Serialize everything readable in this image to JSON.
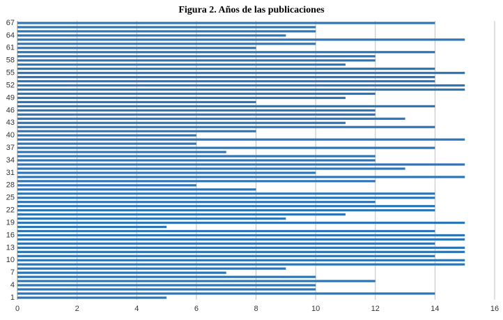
{
  "chart_data": {
    "type": "bar",
    "orientation": "horizontal",
    "title": "Figura 2. Años de las publicaciones",
    "categories": [
      "1",
      null,
      null,
      "4",
      null,
      null,
      "7",
      null,
      null,
      "10",
      null,
      null,
      "13",
      null,
      null,
      "16",
      null,
      null,
      "19",
      null,
      null,
      "22",
      null,
      null,
      "25",
      null,
      null,
      "28",
      null,
      null,
      "31",
      null,
      null,
      "34",
      null,
      null,
      "37",
      null,
      null,
      "40",
      null,
      null,
      "43",
      null,
      null,
      "46",
      null,
      null,
      "49",
      null,
      null,
      "52",
      null,
      null,
      "55",
      null,
      null,
      "58",
      null,
      null,
      "61",
      null,
      null,
      "64",
      null,
      null,
      "67"
    ],
    "values": [
      5,
      14,
      10,
      10,
      12,
      10,
      7,
      9,
      15,
      15,
      14,
      15,
      15,
      14,
      15,
      15,
      14,
      5,
      15,
      9,
      11,
      14,
      14,
      12,
      14,
      14,
      8,
      6,
      12,
      15,
      10,
      13,
      15,
      12,
      12,
      7,
      14,
      6,
      15,
      6,
      8,
      14,
      11,
      13,
      12,
      12,
      14,
      8,
      11,
      12,
      15,
      15,
      14,
      14,
      15,
      14,
      11,
      12,
      12,
      14,
      8,
      10,
      15,
      9,
      10,
      10,
      14
    ],
    "color": "#2e75b6",
    "xlim": [
      0,
      16
    ],
    "xticks": [
      0,
      2,
      4,
      6,
      8,
      10,
      12,
      14,
      16
    ],
    "grid": true
  }
}
